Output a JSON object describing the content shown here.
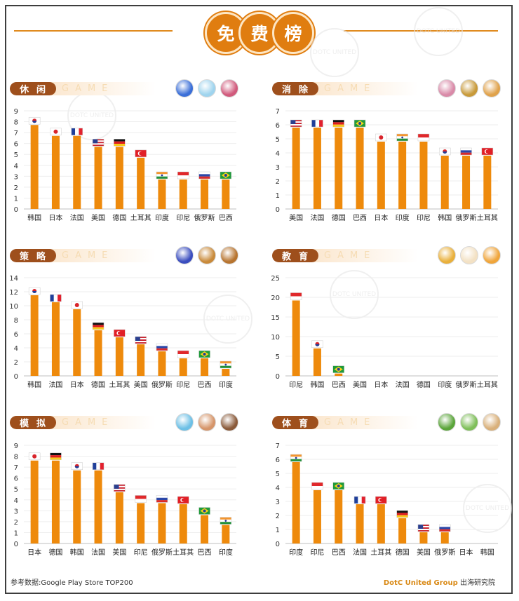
{
  "header": {
    "title_chars": [
      "免",
      "费",
      "榜"
    ]
  },
  "footer": {
    "source": "参考数据:Google Play Store TOP200",
    "brand": "DotC United Group",
    "suffix": "出海研究院"
  },
  "colors": {
    "bar": "#ee8a0c",
    "pill": "#9e4f1c",
    "accent": "#e07d10"
  },
  "watermark": "DOTC UNITED",
  "panels": [
    {
      "label": "休闲",
      "game": "GAME",
      "icons": [
        "hero-game-icon",
        "girl-game-icon",
        "lips-game-icon"
      ],
      "icon_colors": [
        "#3b6fd8",
        "#9fd4ee",
        "#d15a7c"
      ],
      "chart_data": {
        "type": "bar",
        "ylim": [
          0,
          9
        ],
        "yticks": [
          0,
          1,
          2,
          3,
          4,
          5,
          6,
          7,
          8,
          9
        ],
        "categories": [
          "韩国",
          "日本",
          "法国",
          "美国",
          "德国",
          "土耳其",
          "印度",
          "印尼",
          "俄罗斯",
          "巴西"
        ],
        "values": [
          7.7,
          6.7,
          6.7,
          5.7,
          5.7,
          4.7,
          2.7,
          2.7,
          2.7,
          2.7
        ],
        "flags": [
          "kr",
          "jp",
          "fr",
          "us",
          "de",
          "tr",
          "in",
          "id",
          "ru",
          "br"
        ]
      }
    },
    {
      "label": "消除",
      "game": "GAME",
      "icons": [
        "princess-game-icon",
        "blocks-game-icon",
        "heroine-game-icon"
      ],
      "icon_colors": [
        "#d98aa8",
        "#c89a3a",
        "#e0a24b"
      ],
      "chart_data": {
        "type": "bar",
        "ylim": [
          0,
          7
        ],
        "yticks": [
          0,
          1,
          2,
          3,
          4,
          5,
          6,
          7
        ],
        "categories": [
          "美国",
          "法国",
          "德国",
          "巴西",
          "日本",
          "印度",
          "印尼",
          "韩国",
          "俄罗斯",
          "土耳其"
        ],
        "values": [
          5.8,
          5.8,
          5.8,
          5.8,
          4.8,
          4.8,
          4.8,
          3.8,
          3.8,
          3.8
        ],
        "flags": [
          "us",
          "fr",
          "de",
          "br",
          "jp",
          "in",
          "id",
          "kr",
          "ru",
          "tr"
        ]
      }
    },
    {
      "label": "策略",
      "game": "GAME",
      "icons": [
        "mage-game-icon",
        "warrior-game-icon",
        "king-game-icon"
      ],
      "icon_colors": [
        "#3a4dbf",
        "#c98a3a",
        "#b7742f"
      ],
      "chart_data": {
        "type": "bar",
        "ylim": [
          0,
          14
        ],
        "yticks": [
          0,
          2,
          4,
          6,
          8,
          10,
          12,
          14
        ],
        "categories": [
          "韩国",
          "法国",
          "日本",
          "德国",
          "土耳其",
          "美国",
          "俄罗斯",
          "印尼",
          "巴西",
          "印度"
        ],
        "values": [
          11.5,
          10.5,
          9.5,
          6.5,
          5.5,
          4.5,
          3.5,
          2.5,
          2.5,
          1.0
        ],
        "flags": [
          "kr",
          "fr",
          "jp",
          "de",
          "tr",
          "us",
          "ru",
          "id",
          "br",
          "in"
        ]
      }
    },
    {
      "label": "教育",
      "game": "GAME",
      "icons": [
        "kids-game-icon",
        "panda-game-icon",
        "tiger-game-icon"
      ],
      "icon_colors": [
        "#e9b03b",
        "#f3e1c4",
        "#f0a53a"
      ],
      "chart_data": {
        "type": "bar",
        "ylim": [
          0,
          25
        ],
        "yticks": [
          0,
          5,
          10,
          15,
          20,
          25
        ],
        "categories": [
          "印尼",
          "韩国",
          "巴西",
          "美国",
          "日本",
          "法国",
          "德国",
          "印度",
          "俄罗斯",
          "土耳其"
        ],
        "values": [
          19.2,
          7.0,
          0.6,
          0,
          0,
          0,
          0,
          0,
          0,
          0
        ],
        "flags": [
          "id",
          "kr",
          "br",
          "",
          "",
          "",
          "",
          "",
          "",
          ""
        ]
      }
    },
    {
      "label": "模拟",
      "game": "GAME",
      "icons": [
        "mermaid-game-icon",
        "family-game-icon",
        "pirate-game-icon"
      ],
      "icon_colors": [
        "#6dc0e6",
        "#d6956a",
        "#8a5a3a"
      ],
      "chart_data": {
        "type": "bar",
        "ylim": [
          0,
          9
        ],
        "yticks": [
          0,
          1,
          2,
          3,
          4,
          5,
          6,
          7,
          8,
          9
        ],
        "categories": [
          "日本",
          "德国",
          "韩国",
          "法国",
          "美国",
          "印尼",
          "俄罗斯",
          "土耳其",
          "巴西",
          "印度"
        ],
        "values": [
          7.6,
          7.6,
          6.7,
          6.7,
          4.7,
          3.7,
          3.7,
          3.6,
          2.6,
          1.7
        ],
        "flags": [
          "jp",
          "de",
          "kr",
          "fr",
          "us",
          "id",
          "ru",
          "tr",
          "br",
          "in"
        ]
      }
    },
    {
      "label": "体育",
      "game": "GAME",
      "icons": [
        "golf-game-icon",
        "ball-game-icon",
        "ring-game-icon"
      ],
      "icon_colors": [
        "#5aa53a",
        "#7fbf5a",
        "#d9b07a"
      ],
      "chart_data": {
        "type": "bar",
        "ylim": [
          0,
          7
        ],
        "yticks": [
          0,
          1,
          2,
          3,
          4,
          5,
          6,
          7
        ],
        "categories": [
          "印度",
          "印尼",
          "巴西",
          "法国",
          "土耳其",
          "德国",
          "美国",
          "俄罗斯",
          "日本",
          "韩国"
        ],
        "values": [
          5.8,
          3.8,
          3.8,
          2.8,
          2.8,
          1.8,
          0.8,
          0.8,
          0,
          0
        ],
        "flags": [
          "in",
          "id",
          "br",
          "fr",
          "tr",
          "de",
          "us",
          "ru",
          "",
          ""
        ]
      }
    }
  ]
}
